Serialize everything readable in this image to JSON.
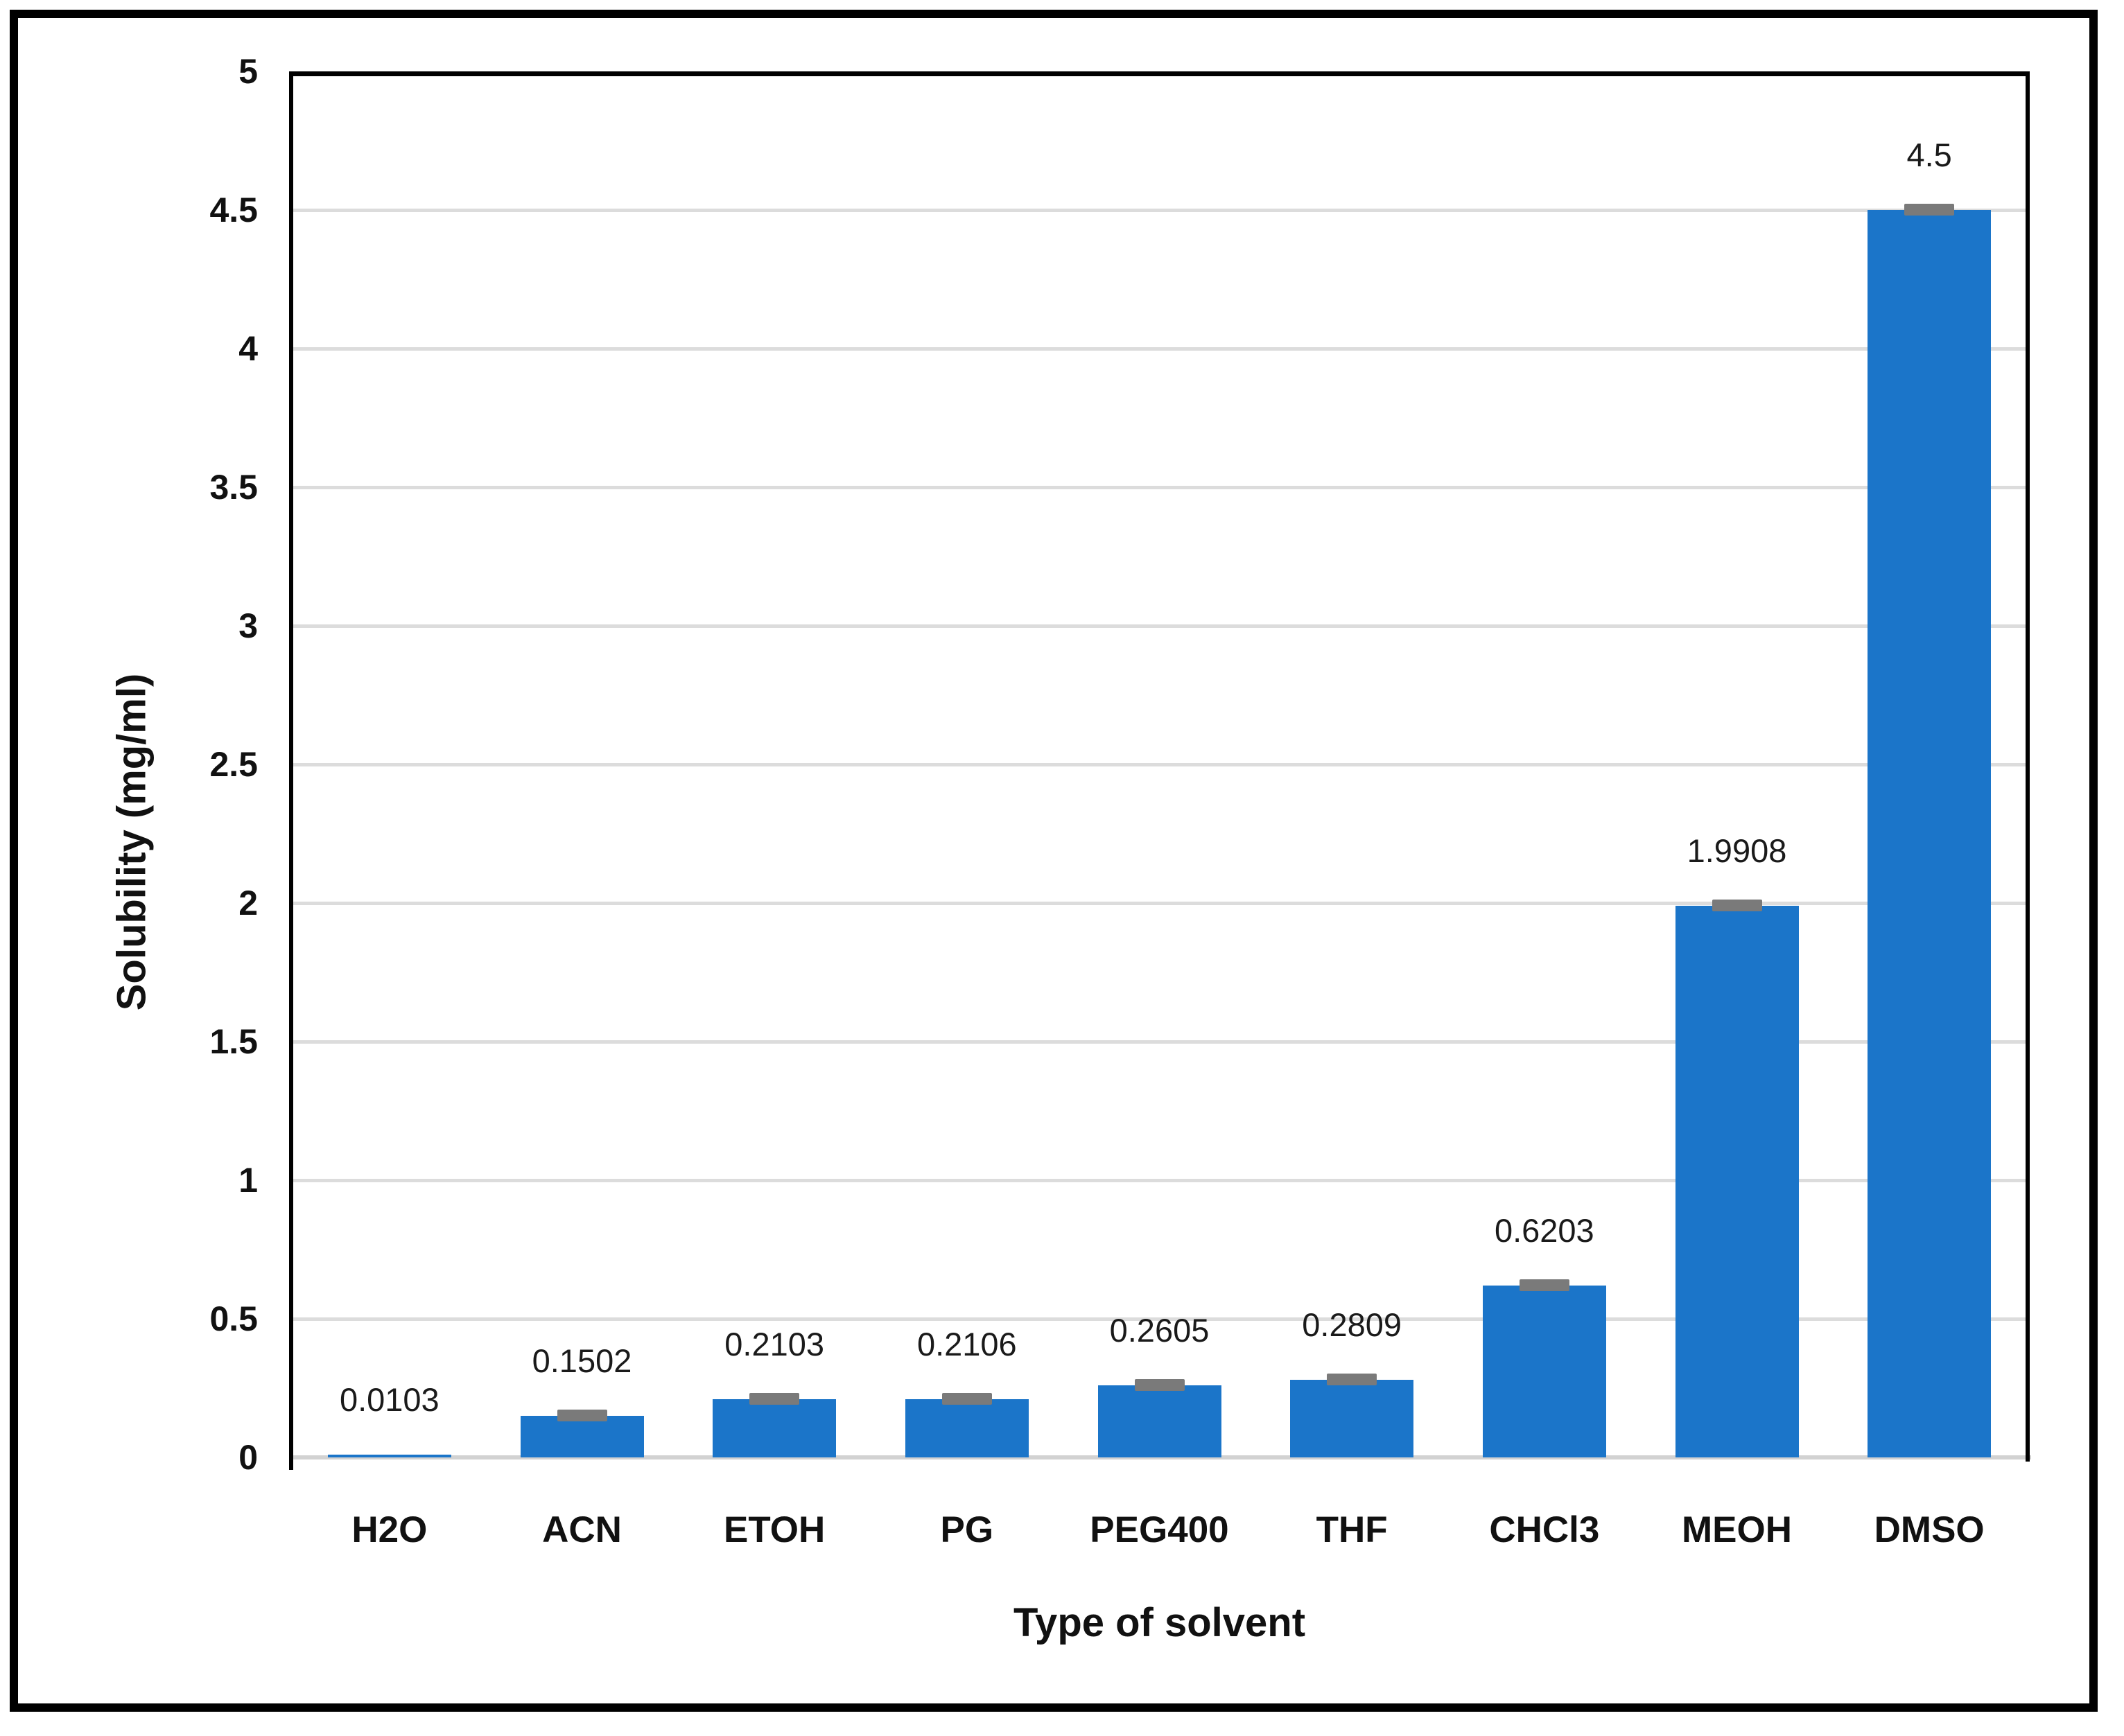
{
  "colors": {
    "bar": "#1B75C9",
    "gridline": "#DCDCDC",
    "baseline": "#D2D2D2",
    "error_cap": "#7A7A7A",
    "plot_border": "#000000",
    "frame_border": "#000000",
    "text": "#111111"
  },
  "chart_data": {
    "type": "bar",
    "title": "",
    "xlabel": "Type of solvent",
    "ylabel": "Solubility (mg/ml)",
    "categories": [
      "H2O",
      "ACN",
      "ETOH",
      "PG",
      "PEG400",
      "THF",
      "CHCl3",
      "MEOH",
      "DMSO"
    ],
    "values": [
      0.0103,
      0.1502,
      0.2103,
      0.2106,
      0.2605,
      0.2809,
      0.6203,
      1.9908,
      4.5
    ],
    "data_labels": [
      "0.0103",
      "0.1502",
      "0.2103",
      "0.2106",
      "0.2605",
      "0.2809",
      "0.6203",
      "1.9908",
      "4.5"
    ],
    "error_caps": [
      false,
      true,
      true,
      true,
      true,
      true,
      true,
      true,
      true
    ],
    "ylim": [
      0,
      5
    ],
    "yticks": [
      0,
      0.5,
      1,
      1.5,
      2,
      2.5,
      3,
      3.5,
      4,
      4.5,
      5
    ],
    "ytick_labels": [
      "0",
      "0.5",
      "1",
      "1.5",
      "2",
      "2.5",
      "3",
      "3.5",
      "4",
      "4.5",
      "5"
    ],
    "grid": "horizontal",
    "legend": "none",
    "bar_color": "#1B75C9"
  }
}
